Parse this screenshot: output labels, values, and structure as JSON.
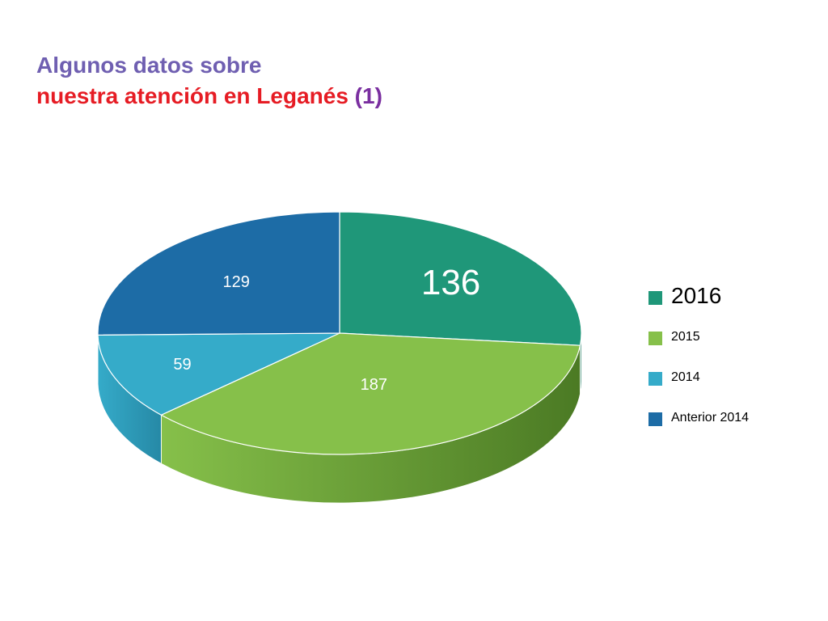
{
  "title": {
    "line1": "Algunos datos sobre",
    "line2": "nuestra atención en Leganés",
    "line2_suffix": "(1)"
  },
  "colors": {
    "title_line1": "#6f5fb1",
    "title_line2": "#e61c24",
    "title_suffix": "#7a2fa0"
  },
  "chart_data": {
    "type": "pie",
    "style": "3d",
    "legend_position": "right",
    "slices": [
      {
        "label": "2016",
        "value": 136,
        "value_label": "136",
        "color": "#1f9779",
        "side_color": "#15604d"
      },
      {
        "label": "2015",
        "value": 187,
        "value_label": "187",
        "color": "#86c04a",
        "side_color": "#4b7a24"
      },
      {
        "label": "2014",
        "value": 59,
        "value_label": "59",
        "color": "#35abc9",
        "side_color": "#2689a6"
      },
      {
        "label": "Anterior 2014",
        "value": 129,
        "value_label": "129",
        "color": "#1d6ca6",
        "side_color": "#154e7a"
      }
    ]
  }
}
